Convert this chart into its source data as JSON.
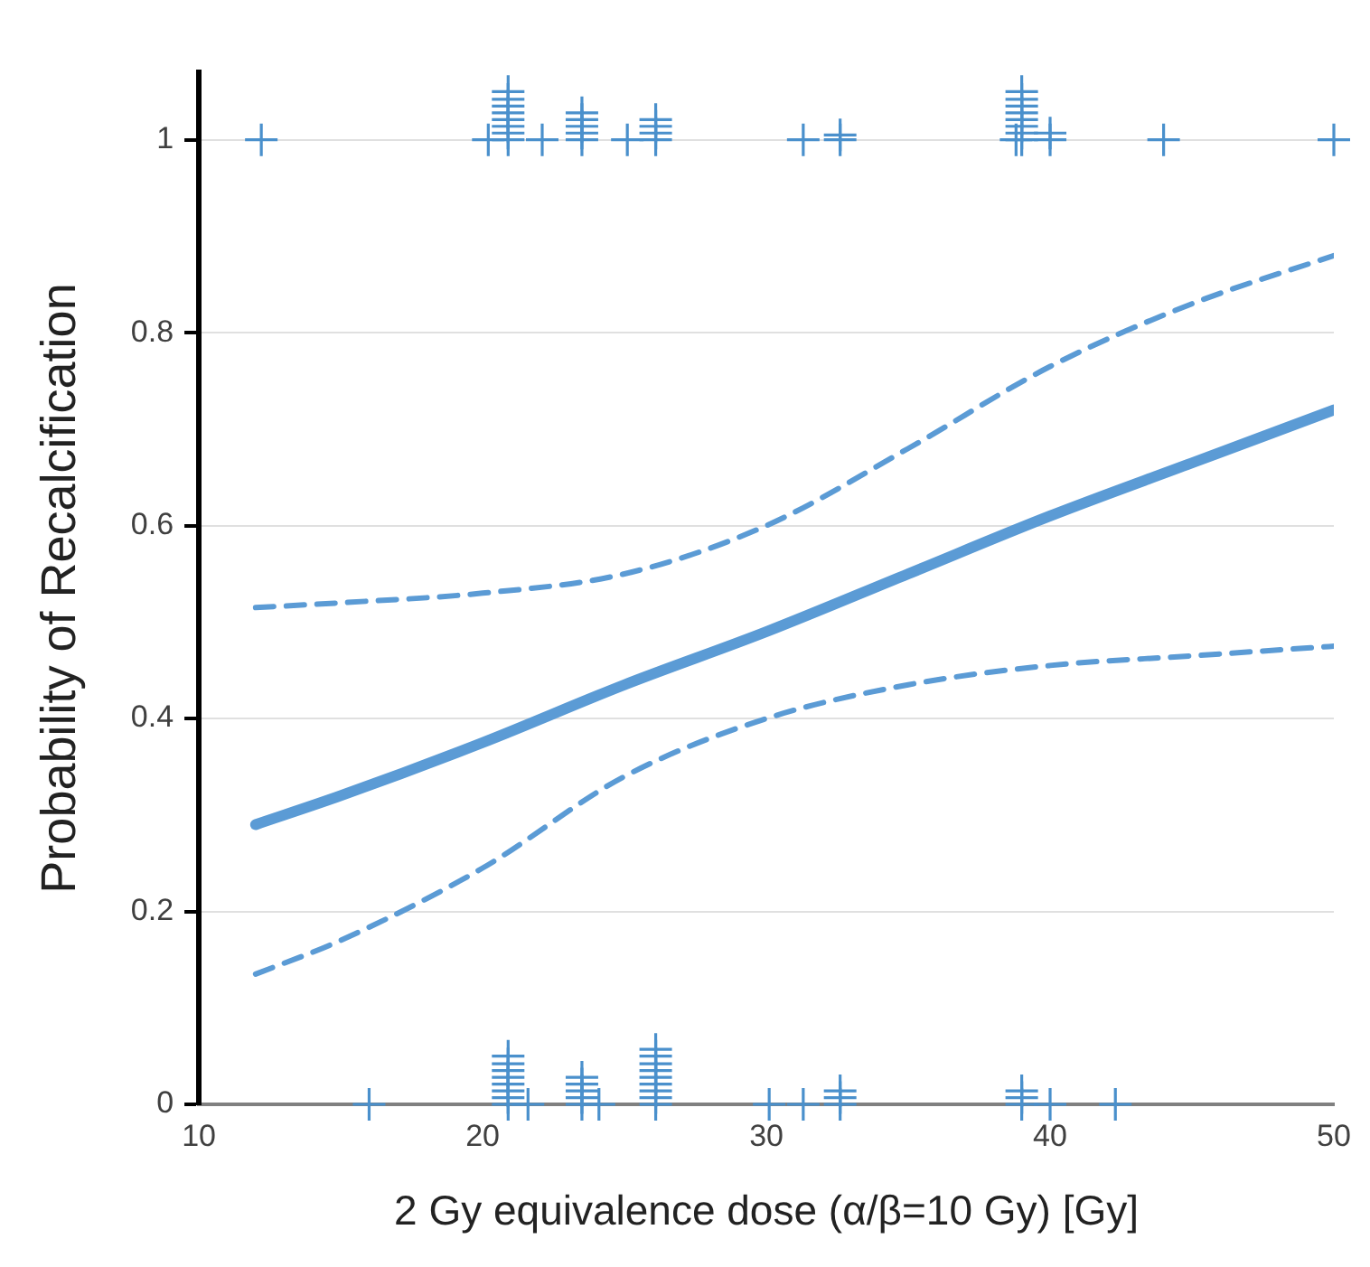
{
  "chart_data": {
    "type": "line",
    "xlabel": "2 Gy equivalence dose (α/β=10 Gy) [Gy]",
    "ylabel": "Probability of Recalcification",
    "xlim": [
      10,
      50
    ],
    "xticks": [
      10,
      20,
      30,
      40,
      50
    ],
    "ylim": [
      0,
      1.07
    ],
    "yticks": [
      0,
      0.2,
      0.4,
      0.6,
      0.8,
      1
    ],
    "grid": "y",
    "legend": false,
    "series": [
      {
        "type": "scatter",
        "marker": "cross",
        "color": "#4a90cc",
        "x": [
          12.2,
          20.2,
          20.9,
          20.9,
          20.9,
          20.9,
          20.9,
          20.9,
          20.9,
          20.9,
          22.1,
          23.5,
          23.5,
          23.5,
          23.5,
          23.5,
          25.1,
          26.1,
          26.1,
          26.1,
          26.1,
          31.3,
          32.6,
          32.6,
          38.8,
          39.0,
          39.0,
          39.0,
          39.0,
          39.0,
          39.0,
          39.0,
          39.0,
          40.0,
          40.0,
          44.0,
          50.0,
          16.0,
          20.9,
          20.9,
          20.9,
          20.9,
          20.9,
          20.9,
          20.9,
          20.9,
          21.6,
          23.5,
          23.5,
          23.5,
          23.5,
          23.5,
          24.1,
          26.1,
          26.1,
          26.1,
          26.1,
          26.1,
          26.1,
          26.1,
          26.1,
          26.1,
          30.1,
          31.3,
          32.6,
          32.6,
          32.6,
          39.0,
          39.0,
          39.0,
          40.0,
          42.3
        ],
        "values": [
          1,
          1,
          1,
          1.007,
          1.014,
          1.021,
          1.028,
          1.035,
          1.042,
          1.05,
          1,
          1,
          1.007,
          1.014,
          1.021,
          1.028,
          1,
          1,
          1.007,
          1.014,
          1.021,
          1,
          1,
          1.005,
          1,
          1,
          1.007,
          1.014,
          1.021,
          1.028,
          1.035,
          1.042,
          1.05,
          1,
          1.007,
          1,
          1,
          0,
          0,
          0.007,
          0.014,
          0.021,
          0.028,
          0.035,
          0.042,
          0.05,
          0,
          0,
          0.007,
          0.014,
          0.021,
          0.028,
          0,
          0,
          0.007,
          0.014,
          0.021,
          0.028,
          0.035,
          0.042,
          0.05,
          0.057,
          0,
          0,
          0,
          0.007,
          0.014,
          0,
          0.007,
          0.014,
          0,
          0
        ]
      },
      {
        "color": "#5b9bd5",
        "marker": "none",
        "line_style": "solid",
        "x": [
          12,
          15,
          20,
          25,
          30,
          35,
          40,
          45,
          50
        ],
        "values": [
          0.29,
          0.32,
          0.375,
          0.435,
          0.49,
          0.55,
          0.61,
          0.665,
          0.72
        ]
      },
      {
        "color": "#5b9bd5",
        "marker": "none",
        "line_style": "dashed",
        "x": [
          12,
          15,
          20,
          25,
          30,
          35,
          40,
          45,
          50
        ],
        "values": [
          0.515,
          0.52,
          0.53,
          0.55,
          0.6,
          0.68,
          0.765,
          0.83,
          0.88
        ]
      },
      {
        "color": "#5b9bd5",
        "marker": "none",
        "line_style": "dashed",
        "x": [
          12,
          15,
          20,
          25,
          30,
          35,
          40,
          45,
          50
        ],
        "values": [
          0.135,
          0.17,
          0.245,
          0.34,
          0.4,
          0.435,
          0.455,
          0.465,
          0.475
        ]
      }
    ]
  }
}
